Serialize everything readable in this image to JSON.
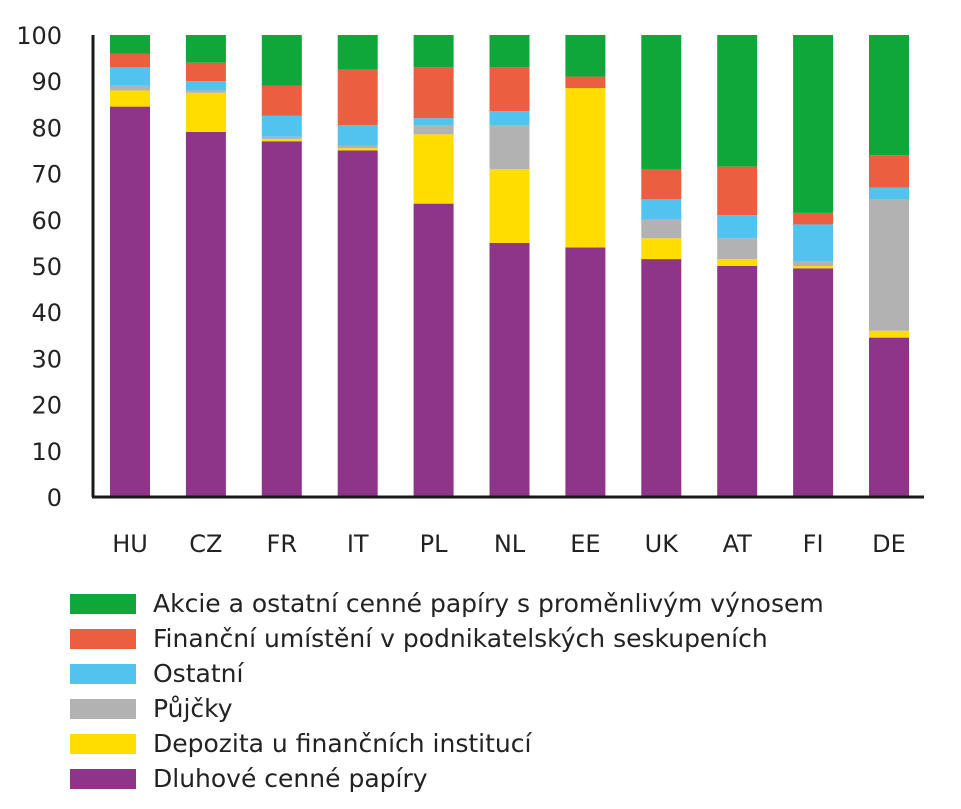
{
  "chart_data": {
    "type": "bar",
    "stacked": true,
    "title": "",
    "xlabel": "",
    "ylabel": "",
    "ylim": [
      0,
      100
    ],
    "yticks": [
      0,
      10,
      20,
      30,
      40,
      50,
      60,
      70,
      80,
      90,
      100
    ],
    "grid": false,
    "legend_position": "bottom",
    "categories": [
      "HU",
      "CZ",
      "FR",
      "IT",
      "PL",
      "NL",
      "EE",
      "UK",
      "AT",
      "FI",
      "DE"
    ],
    "series": [
      {
        "name": "Dluhové cenné papíry",
        "color": "#8e3589",
        "values": [
          84.5,
          79,
          77,
          75,
          63.5,
          55,
          54,
          51.5,
          50,
          49.5,
          34.5
        ]
      },
      {
        "name": "Depozita u finančních institucí",
        "color": "#ffdd00",
        "values": [
          3.5,
          8.5,
          0.5,
          0.5,
          15,
          16,
          34.5,
          4.5,
          1.5,
          0.5,
          1.5
        ]
      },
      {
        "name": "Půjčky",
        "color": "#b2b2b2",
        "values": [
          1,
          0.5,
          0.5,
          0.5,
          2,
          9.5,
          0,
          4,
          4.5,
          1,
          28.5
        ]
      },
      {
        "name": "Ostatní",
        "color": "#52c3ef",
        "values": [
          4,
          2,
          4.5,
          4.5,
          1.5,
          3,
          0,
          4.5,
          5,
          8,
          2.5
        ]
      },
      {
        "name": "Finanční umístění v podnikatelských seskupeních",
        "color": "#ec5e40",
        "values": [
          3,
          4,
          6.5,
          12,
          11,
          9.5,
          2.5,
          6.5,
          10.5,
          2.5,
          7
        ]
      },
      {
        "name": "Akcie a ostatní cenné papíry s proměnlivým výnosem",
        "color": "#0fa63a",
        "values": [
          4,
          6,
          11,
          7.5,
          7,
          7,
          9,
          29,
          28.5,
          38.5,
          26
        ]
      }
    ],
    "legend_order": [
      5,
      4,
      3,
      2,
      1,
      0
    ]
  }
}
